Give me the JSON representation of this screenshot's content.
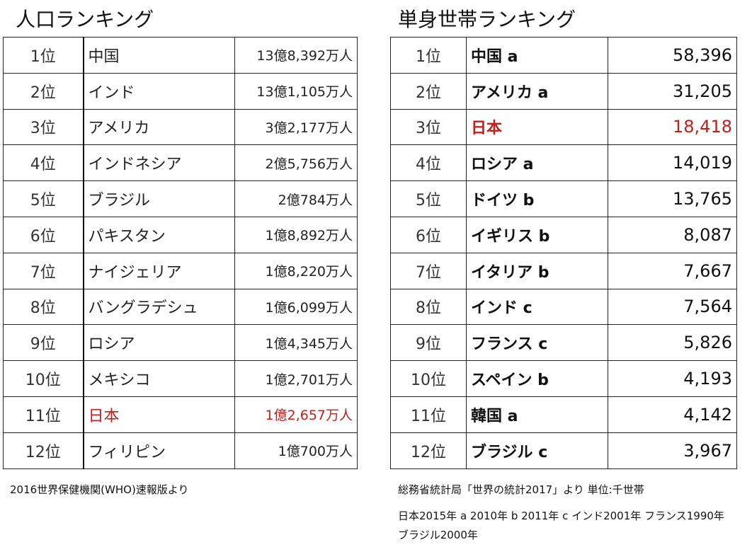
{
  "population": {
    "title": "人口ランキング",
    "rows": [
      {
        "rank": "1位",
        "country": "中国",
        "value": "13億8,392万人"
      },
      {
        "rank": "2位",
        "country": "インド",
        "value": "13億1,105万人"
      },
      {
        "rank": "3位",
        "country": "アメリカ",
        "value": "3億2,177万人"
      },
      {
        "rank": "4位",
        "country": "インドネシア",
        "value": "2億5,756万人"
      },
      {
        "rank": "5位",
        "country": "ブラジル",
        "value": "2億784万人"
      },
      {
        "rank": "6位",
        "country": "パキスタン",
        "value": "1億8,892万人"
      },
      {
        "rank": "7位",
        "country": "ナイジェリア",
        "value": "1億8,220万人"
      },
      {
        "rank": "8位",
        "country": "バングラデシュ",
        "value": "1億6,099万人"
      },
      {
        "rank": "9位",
        "country": "ロシア",
        "value": "1億4,345万人"
      },
      {
        "rank": "10位",
        "country": "メキシコ",
        "value": "1億2,701万人"
      },
      {
        "rank": "11位",
        "country": "日本",
        "value": "1億2,657万人",
        "highlight": true
      },
      {
        "rank": "12位",
        "country": "フィリピン",
        "value": "1億700万人"
      }
    ],
    "source": "2016世界保健機関(WHO)速報版より"
  },
  "single_households": {
    "title": "単身世帯ランキング",
    "rows": [
      {
        "rank": "1位",
        "country": "中国 a",
        "value": "58,396"
      },
      {
        "rank": "2位",
        "country": "アメリカ a",
        "value": "31,205"
      },
      {
        "rank": "3位",
        "country": "日本",
        "value": "18,418",
        "highlight": true
      },
      {
        "rank": "4位",
        "country": "ロシア a",
        "value": "14,019"
      },
      {
        "rank": "5位",
        "country": "ドイツ b",
        "value": "13,765"
      },
      {
        "rank": "6位",
        "country": "イギリス b",
        "value": "8,087"
      },
      {
        "rank": "7位",
        "country": "イタリア b",
        "value": "7,667"
      },
      {
        "rank": "8位",
        "country": "インド c",
        "value": "7,564"
      },
      {
        "rank": "9位",
        "country": "フランス c",
        "value": "5,826"
      },
      {
        "rank": "10位",
        "country": "スペイン b",
        "value": "4,193"
      },
      {
        "rank": "11位",
        "country": "韓国 a",
        "value": "4,142"
      },
      {
        "rank": "12位",
        "country": "ブラジル c",
        "value": "3,967"
      }
    ],
    "source": "総務省統計局「世界の統計2017」より 単位:千世帯",
    "note": "日本2015年 a 2010年 b 2011年 c インド2001年 フランス1990年 ブラジル2000年"
  },
  "colors": {
    "highlight": "#c0201a"
  }
}
